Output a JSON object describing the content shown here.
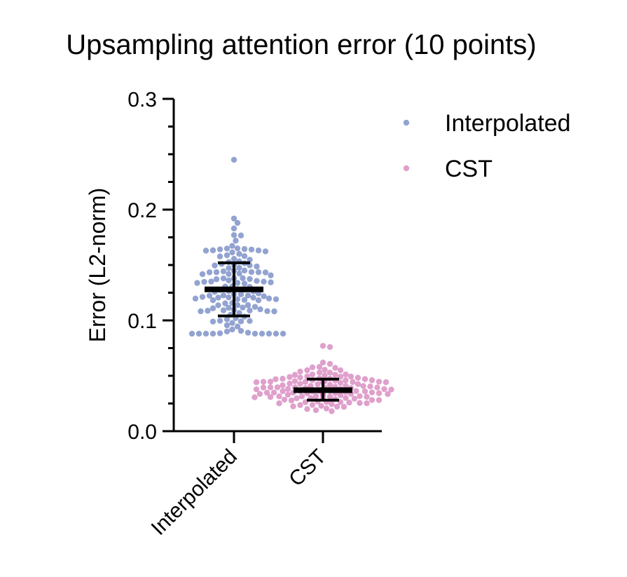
{
  "chart_data": {
    "type": "scatter",
    "subtype": "swarm-with-mean-sd",
    "title": "Upsampling attention error (10 points)",
    "xlabel": "",
    "ylabel": "Error (L2-norm)",
    "ylim": [
      0,
      0.3
    ],
    "yticks": [
      "0.0",
      "0.1",
      "0.2",
      "0.3"
    ],
    "ytick_values": [
      0,
      0.1,
      0.2,
      0.3
    ],
    "y_minor_step": 0.025,
    "categories": [
      "Interpolated",
      "CST"
    ],
    "grid": false,
    "legend": {
      "placement": "top-right",
      "entries": [
        "Interpolated",
        "CST"
      ]
    },
    "series": [
      {
        "name": "Interpolated",
        "category": "Interpolated",
        "color": "#6a80bf",
        "mean": 0.128,
        "sd_low": 0.104,
        "sd_high": 0.152,
        "n_points": 130,
        "min": 0.088,
        "max": 0.245,
        "notable_values": [
          0.245,
          0.192,
          0.188,
          0.183,
          0.177,
          0.172,
          0.165,
          0.16,
          0.09,
          0.088
        ]
      },
      {
        "name": "CST",
        "category": "CST",
        "color": "#d27cb8",
        "mean": 0.037,
        "sd_low": 0.028,
        "sd_high": 0.047,
        "n_points": 130,
        "min": 0.018,
        "max": 0.077,
        "notable_values": [
          0.077,
          0.076,
          0.062,
          0.058,
          0.055,
          0.022,
          0.02,
          0.018
        ]
      }
    ]
  }
}
